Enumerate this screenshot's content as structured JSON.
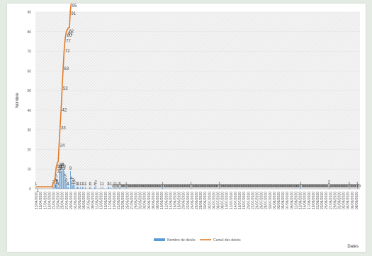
{
  "chart_data": {
    "type": "bar+line",
    "title": "",
    "ylabel": "Nombre",
    "xlabel": "Dates",
    "ylim": [
      0,
      90
    ],
    "yticks": [
      0,
      10,
      20,
      30,
      40,
      50,
      60,
      70,
      80,
      90
    ],
    "grid": "hatched background",
    "legend": "bottom-center",
    "colors": {
      "bars": "#5b9bd5",
      "line": "#e07b2a"
    },
    "x_labels": [
      "13/04/2020",
      "15/04/2020",
      "17/04/2020",
      "19/04/2020",
      "21/04/2020",
      "23/04/2020",
      "25/04/2020",
      "27/04/2020",
      "29/04/2020",
      "01/05/2020",
      "03/05/2020",
      "05/05/2020",
      "07/05/2020",
      "09/05/2020",
      "11/05/2020",
      "13/05/2020",
      "15/05/2020",
      "17/05/2020",
      "19/05/2020",
      "21/05/2020",
      "23/05/2020",
      "25/05/2020",
      "27/05/2020",
      "29/05/2020",
      "31/05/2020",
      "02/06/2020",
      "04/06/2020",
      "06/06/2020",
      "08/06/2020",
      "10/06/2020",
      "12/06/2020",
      "14/06/2020",
      "16/06/2020",
      "18/06/2020",
      "20/06/2020",
      "22/06/2020",
      "24/06/2020",
      "26/06/2020",
      "28/06/2020",
      "30/06/2020",
      "02/07/2020",
      "04/07/2020",
      "06/07/2020",
      "08/07/2020",
      "10/07/2020",
      "12/07/2020",
      "14/07/2020",
      "16/07/2020",
      "18/07/2020",
      "20/07/2020",
      "22/07/2020",
      "24/07/2020",
      "26/07/2020",
      "28/07/2020",
      "30/07/2020",
      "01/08/2020",
      "03/08/2020",
      "05/08/2020",
      "07/08/2020",
      "09/08/2020",
      "11/08/2020",
      "13/08/2020",
      "15/08/2020",
      "17/08/2020",
      "19/08/2020",
      "21/08/2020",
      "23/08/2020",
      "25/08/2020",
      "27/08/2020",
      "29/08/2020",
      "31/08/2020",
      "02/09/2020",
      "04/09/2020",
      "06/09/2020",
      "08/09/2020"
    ],
    "series": [
      {
        "name": "Nombre de décès",
        "type": "bar",
        "values": [
          1,
          0,
          0,
          0,
          0,
          0,
          0,
          0,
          0,
          0,
          0,
          0,
          0,
          0,
          0,
          0,
          0,
          2,
          0,
          3,
          5,
          2,
          1,
          10,
          9,
          9,
          11,
          10,
          9,
          5,
          3,
          1,
          1,
          0,
          9,
          4,
          2,
          3,
          2,
          0,
          1,
          1,
          1,
          0,
          1,
          0,
          1,
          1,
          0,
          1,
          0,
          0,
          0,
          1,
          1,
          0,
          0,
          0,
          1,
          2,
          0,
          0,
          0,
          0,
          1,
          0,
          1,
          0,
          0,
          0,
          0,
          1,
          1,
          0,
          1,
          0,
          0,
          1,
          0,
          1,
          0,
          0,
          1,
          1,
          0,
          0,
          0,
          0,
          0,
          1,
          0,
          0,
          0,
          0,
          0,
          0,
          0,
          0,
          0,
          0,
          0,
          0,
          0,
          0,
          0,
          0,
          0,
          0,
          0,
          0,
          0,
          0,
          0,
          0,
          0,
          0,
          0,
          0,
          0,
          0,
          0,
          0,
          0,
          0,
          0,
          1,
          0,
          0,
          0,
          0,
          0,
          0,
          0,
          0,
          0,
          0,
          0,
          0,
          0,
          0,
          0,
          0,
          0,
          0,
          0,
          0,
          0,
          0,
          0,
          0,
          0,
          0,
          0,
          1,
          0,
          0,
          0,
          0,
          0,
          0,
          0,
          0,
          0,
          0,
          0,
          0,
          0,
          0,
          0,
          0,
          0,
          0,
          0,
          0,
          0,
          0,
          0,
          0,
          0,
          0,
          0,
          1,
          0,
          0,
          0,
          0,
          0,
          0,
          0,
          0,
          0,
          0,
          0,
          0,
          0,
          0,
          0,
          0,
          0,
          0,
          0,
          0,
          0,
          0,
          0,
          0,
          0,
          0,
          0,
          0,
          0,
          0,
          0,
          0,
          0,
          0,
          0,
          0,
          0,
          0,
          0,
          0,
          0,
          0,
          0,
          0,
          0,
          0,
          0,
          0,
          0,
          0,
          0,
          0,
          0,
          0,
          0,
          0,
          0,
          0,
          0,
          0,
          0,
          0,
          0,
          0,
          0,
          0,
          0,
          0,
          0,
          0,
          0,
          0,
          0,
          0,
          0,
          0,
          0,
          0,
          0,
          1,
          0,
          0,
          0,
          0,
          0,
          0,
          0,
          0,
          0,
          0,
          0,
          0,
          0,
          0,
          0,
          0,
          0,
          0,
          0,
          0,
          0,
          0,
          0,
          0,
          0,
          0,
          0,
          2,
          0,
          0,
          0,
          0,
          0,
          0,
          0,
          0,
          0,
          0,
          0,
          0,
          0,
          0,
          0,
          0,
          0,
          0,
          0,
          1,
          0,
          0,
          0,
          0,
          0,
          0,
          0,
          1,
          0,
          0
        ]
      },
      {
        "name": "Cumul des décès",
        "type": "line"
      }
    ]
  }
}
